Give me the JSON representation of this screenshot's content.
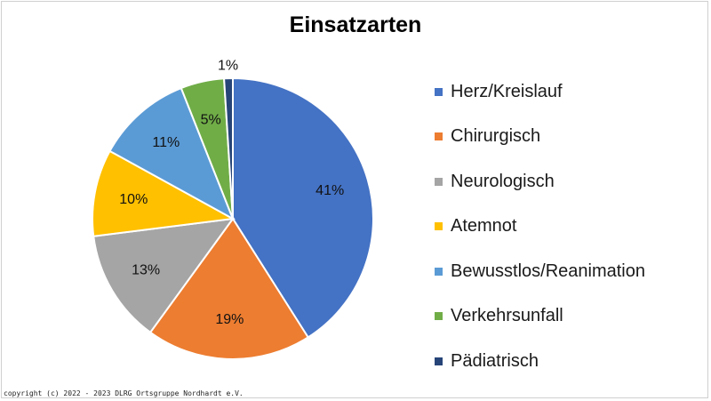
{
  "chart_data": {
    "type": "pie",
    "title": "Einsatzarten",
    "categories": [
      "Herz/Kreislauf",
      "Chirurgisch",
      "Neurologisch",
      "Atemnot",
      "Bewusstlos/Reanimation",
      "Verkehrsunfall",
      "Pädiatrisch"
    ],
    "values": [
      41,
      19,
      13,
      10,
      11,
      5,
      1
    ],
    "data_labels": [
      "41%",
      "19%",
      "13%",
      "10%",
      "11%",
      "5%",
      "1%"
    ],
    "colors": [
      "#4472c4",
      "#ed7d31",
      "#a5a5a5",
      "#ffc000",
      "#5b9bd5",
      "#70ad47",
      "#264478"
    ],
    "legend_position": "right",
    "start_angle": "top",
    "direction": "clockwise"
  },
  "footer": {
    "copyright": "copyright (c) 2022 - 2023 DLRG Ortsgruppe Nordhardt e.V."
  }
}
